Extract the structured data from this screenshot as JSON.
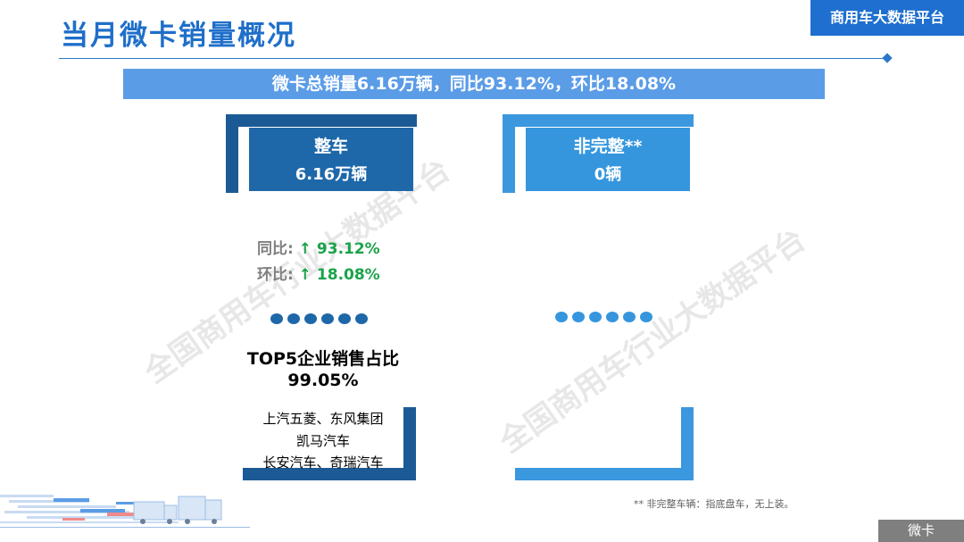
{
  "header": {
    "title": "当月微卡销量概况",
    "brand": "商用车大数据平台"
  },
  "summary": "微卡总销量6.16万辆，同比93.12%，环比18.08%",
  "left_card": {
    "label": "整车",
    "value": "6.16万辆",
    "yoy_label": "同比:",
    "yoy_arrow": "↑",
    "yoy_value": "93.12%",
    "mom_label": "环比:",
    "mom_arrow": "↑",
    "mom_value": "18.08%",
    "top5_title": "TOP5企业销售占比",
    "top5_value": "99.05%",
    "companies": [
      "上汽五菱、东风集团",
      "凯马汽车",
      "长安汽车、奇瑞汽车"
    ]
  },
  "right_card": {
    "label": "非完整**",
    "value": "0辆"
  },
  "footnote": "** 非完整车辆：指底盘车，无上装。",
  "corner_tag": "微卡",
  "watermark": "全国商用车行业大数据平台",
  "colors": {
    "title": "#1f6fc9",
    "summary_bar": "#5b9ce7",
    "left_card": "#1e67a9",
    "right_card": "#3596dd",
    "up": "#1aa34a"
  }
}
